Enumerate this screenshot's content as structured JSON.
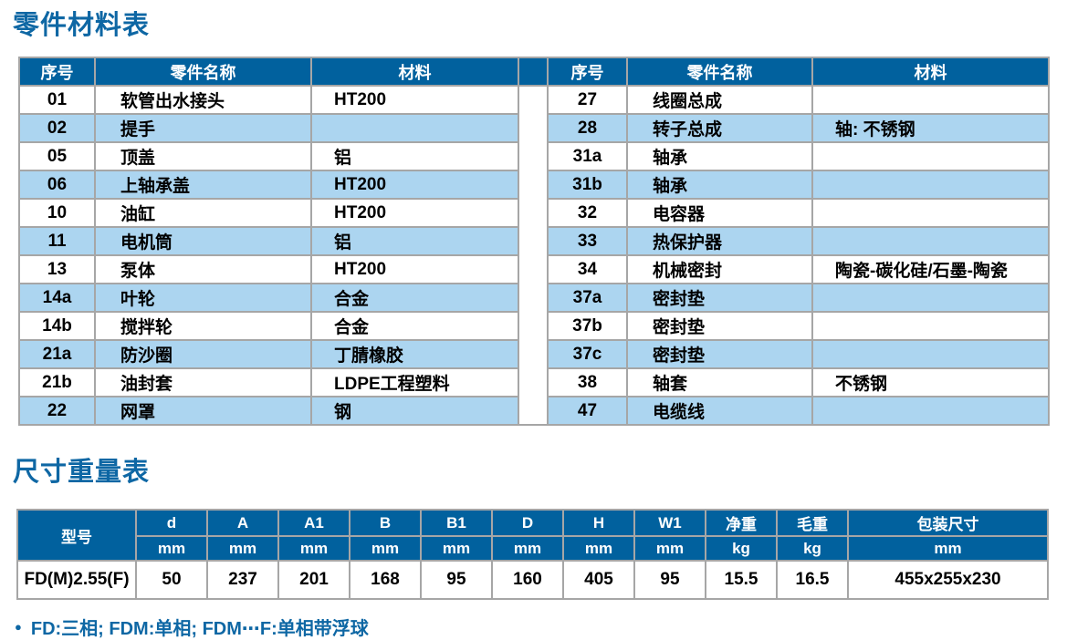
{
  "titles": {
    "parts_material": "零件材料表",
    "dimensions_weight": "尺寸重量表"
  },
  "parts_table": {
    "headers": {
      "serial": "序号",
      "part_name": "零件名称",
      "material": "材料"
    },
    "left_rows": [
      {
        "no": "01",
        "name": "软管出水接头",
        "material": "HT200"
      },
      {
        "no": "02",
        "name": "提手",
        "material": ""
      },
      {
        "no": "05",
        "name": "顶盖",
        "material": "铝"
      },
      {
        "no": "06",
        "name": "上轴承盖",
        "material": "HT200"
      },
      {
        "no": "10",
        "name": "油缸",
        "material": "HT200"
      },
      {
        "no": "11",
        "name": "电机筒",
        "material": "铝"
      },
      {
        "no": "13",
        "name": "泵体",
        "material": "HT200"
      },
      {
        "no": "14a",
        "name": "叶轮",
        "material": "合金"
      },
      {
        "no": "14b",
        "name": "搅拌轮",
        "material": "合金"
      },
      {
        "no": "21a",
        "name": "防沙圈",
        "material": "丁腈橡胶"
      },
      {
        "no": "21b",
        "name": "油封套",
        "material": "LDPE工程塑料"
      },
      {
        "no": "22",
        "name": "网罩",
        "material": "钢"
      }
    ],
    "right_rows": [
      {
        "no": "27",
        "name": "线圈总成",
        "material": ""
      },
      {
        "no": "28",
        "name": "转子总成",
        "material": "轴: 不锈钢"
      },
      {
        "no": "31a",
        "name": "轴承",
        "material": ""
      },
      {
        "no": "31b",
        "name": "轴承",
        "material": ""
      },
      {
        "no": "32",
        "name": "电容器",
        "material": ""
      },
      {
        "no": "33",
        "name": "热保护器",
        "material": ""
      },
      {
        "no": "34",
        "name": "机械密封",
        "material": "陶瓷-碳化硅/石墨-陶瓷"
      },
      {
        "no": "37a",
        "name": "密封垫",
        "material": ""
      },
      {
        "no": "37b",
        "name": "密封垫",
        "material": ""
      },
      {
        "no": "37c",
        "name": "密封垫",
        "material": ""
      },
      {
        "no": "38",
        "name": "轴套",
        "material": "不锈钢"
      },
      {
        "no": "47",
        "name": "电缆线",
        "material": ""
      }
    ]
  },
  "dims_table": {
    "model_header": "型号",
    "columns": [
      {
        "label": "d",
        "unit": "mm"
      },
      {
        "label": "A",
        "unit": "mm"
      },
      {
        "label": "A1",
        "unit": "mm"
      },
      {
        "label": "B",
        "unit": "mm"
      },
      {
        "label": "B1",
        "unit": "mm"
      },
      {
        "label": "D",
        "unit": "mm"
      },
      {
        "label": "H",
        "unit": "mm"
      },
      {
        "label": "W1",
        "unit": "mm"
      },
      {
        "label": "净重",
        "unit": "kg"
      },
      {
        "label": "毛重",
        "unit": "kg"
      },
      {
        "label": "包装尺寸",
        "unit": "mm"
      }
    ],
    "rows": [
      {
        "model": "FD(M)2.55(F)",
        "values": [
          "50",
          "237",
          "201",
          "168",
          "95",
          "160",
          "405",
          "95",
          "15.5",
          "16.5",
          "455x255x230"
        ]
      }
    ]
  },
  "footnote": {
    "bullet": "●",
    "text": "FD:三相; FDM:单相; FDM⋯F:单相带浮球"
  },
  "colors": {
    "header_blue": "#01619E",
    "row_alt_blue": "#ACD5F0",
    "title_blue": "#0E67A4",
    "border_gray": "#A6A6A6",
    "body_text": "#000000",
    "header_text": "#FFFFFF"
  }
}
